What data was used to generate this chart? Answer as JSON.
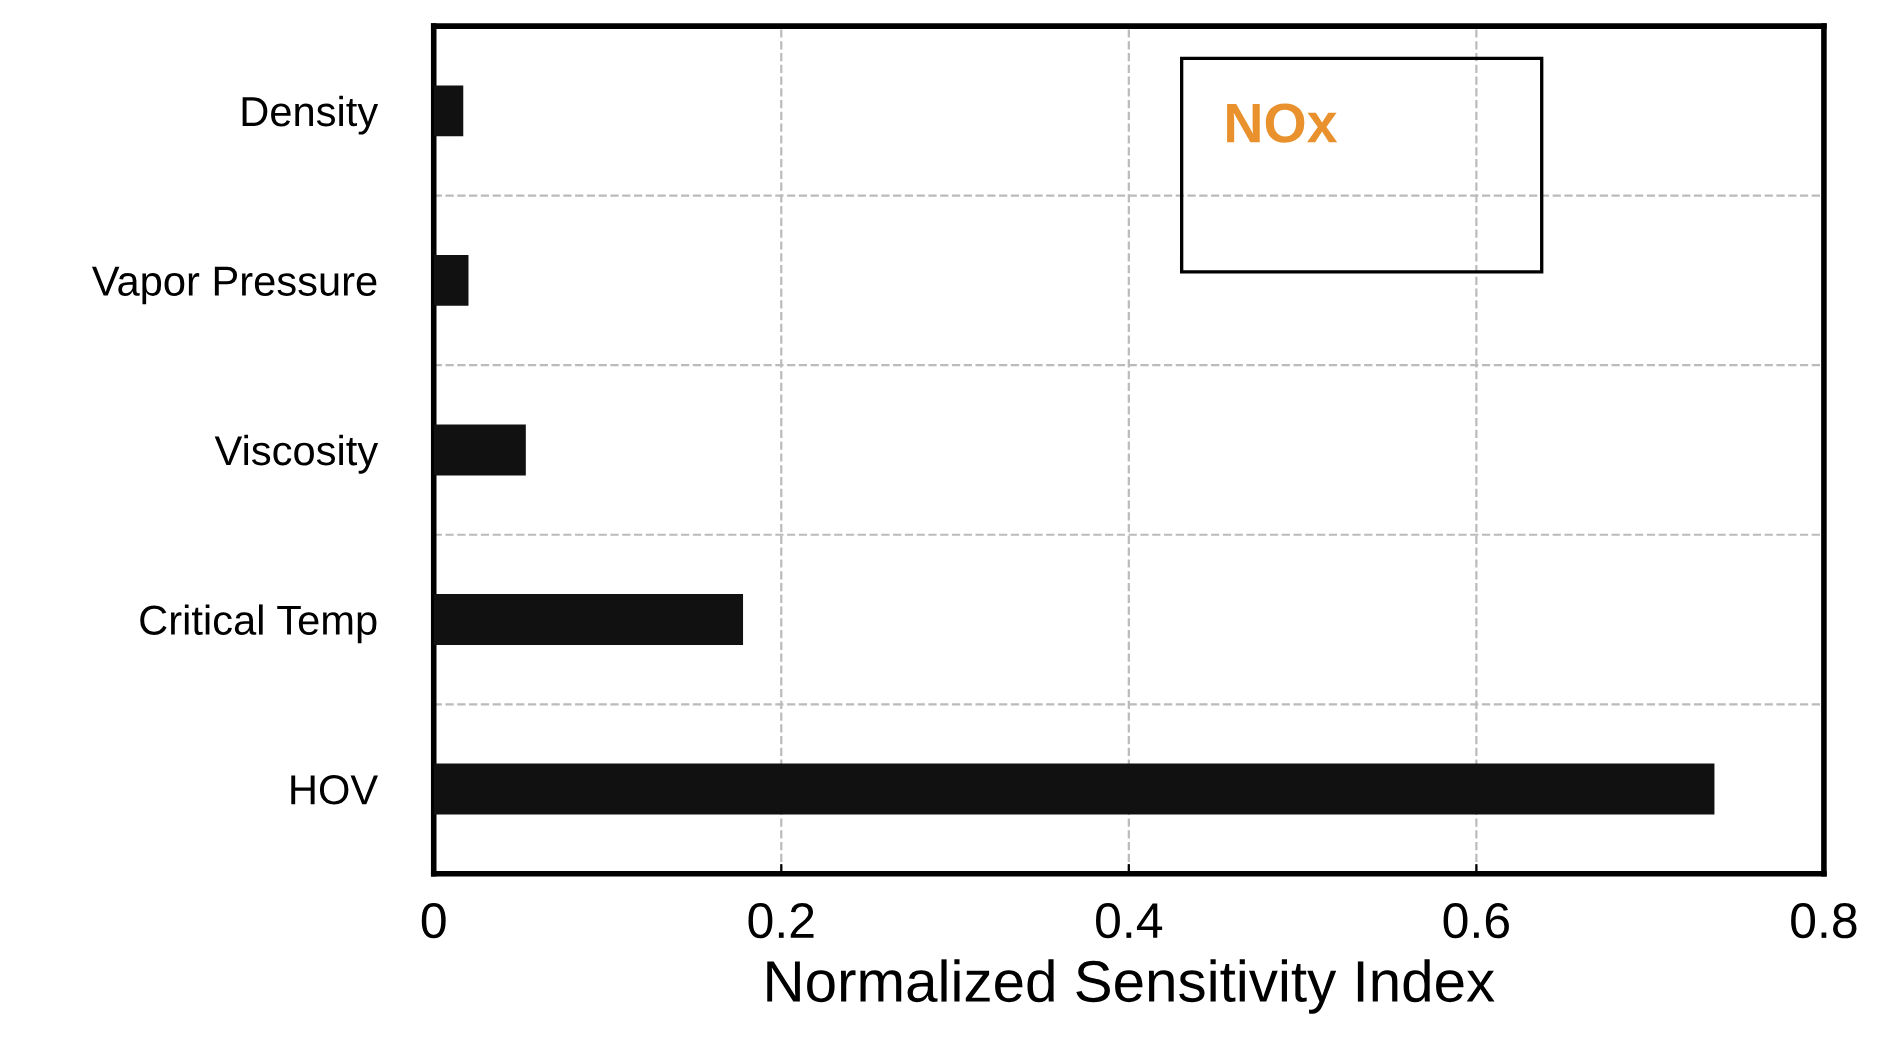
{
  "chart_data": {
    "type": "bar",
    "orientation": "horizontal",
    "categories": [
      "Density",
      "Vapor Pressure",
      "Viscosity",
      "Critical Temp",
      "HOV"
    ],
    "values": [
      0.017,
      0.02,
      0.053,
      0.178,
      0.737
    ],
    "color": "#111111",
    "xlim": [
      0,
      0.8
    ],
    "xticks": [
      0,
      0.2,
      0.4,
      0.6,
      0.8
    ],
    "xlabel": "Normalized Sensitivity Index",
    "annotations": [
      "NOx"
    ],
    "grid": true,
    "legend": false
  }
}
